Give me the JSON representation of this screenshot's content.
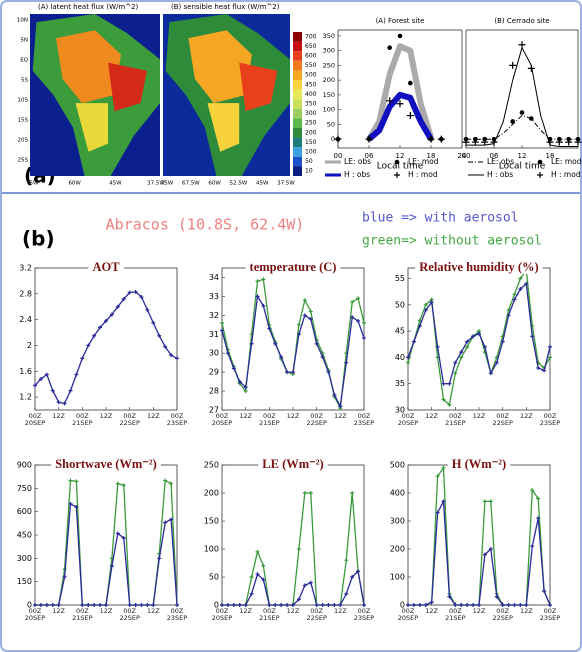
{
  "figure": {
    "panel_a": "(a)",
    "panel_b": "(b)",
    "site": "Abracos (10.8S, 62.4W)",
    "legend_blue": "blue => with aerosol",
    "legend_green": "green=> without aerosol"
  },
  "maps": [
    {
      "title": "(A) latent heat flux (W/m^2)",
      "yticks": [
        "10N",
        "5N",
        "EQ",
        "5S",
        "10S",
        "15S",
        "20S",
        "25S"
      ],
      "xticks": [
        "5W",
        "60W",
        "45W",
        "37.5W"
      ]
    },
    {
      "title": "(B) sensible heat flux (W/m^2)",
      "xticks": [
        "75W",
        "67.5W",
        "60W",
        "52.5W",
        "45W",
        "37.5W"
      ]
    }
  ],
  "colorbar": {
    "ticks": [
      700,
      650,
      600,
      550,
      500,
      450,
      400,
      350,
      300,
      250,
      200,
      150,
      100,
      50,
      10
    ],
    "colors": [
      "#8b0000",
      "#c81010",
      "#e8401a",
      "#f27a1e",
      "#f5a623",
      "#f7d23a",
      "#e8e85a",
      "#c8e05a",
      "#9cd060",
      "#5cb84a",
      "#2e8b3a",
      "#1f7a7a",
      "#3aa0e0",
      "#1a50c8",
      "#0a1f80"
    ]
  },
  "chart_data": [
    {
      "type": "line",
      "title": "(A) Forest site",
      "xlabel": "Local time",
      "x": [
        0,
        2,
        4,
        6,
        8,
        10,
        12,
        14,
        16,
        18,
        20,
        22,
        24
      ],
      "xlim": [
        0,
        24
      ],
      "xticks": [
        {
          "value": 0,
          "label": "00"
        },
        {
          "value": 6,
          "label": "06"
        },
        12,
        18,
        24
      ],
      "ylim": [
        -30,
        370
      ],
      "yticks": [
        0,
        50,
        100,
        150,
        200,
        250,
        300,
        350
      ],
      "series": [
        {
          "name": "LE: obs",
          "color": "#aaaaaa",
          "style": "thick",
          "values": [
            null,
            null,
            null,
            0,
            60,
            220,
            315,
            300,
            120,
            5,
            null,
            null,
            null
          ]
        },
        {
          "name": "H : obs",
          "color": "#1010c0",
          "style": "thick",
          "values": [
            null,
            null,
            null,
            0,
            30,
            110,
            150,
            140,
            60,
            0,
            null,
            null,
            null
          ]
        },
        {
          "name": "LE: mod",
          "color": "#000000",
          "style": "dots",
          "values": [
            0,
            null,
            null,
            0,
            null,
            310,
            350,
            190,
            null,
            0,
            0,
            null,
            null
          ]
        },
        {
          "name": "H : mod",
          "color": "#000000",
          "style": "plus",
          "values": [
            0,
            null,
            null,
            0,
            null,
            130,
            120,
            80,
            null,
            0,
            0,
            null,
            null
          ]
        }
      ]
    },
    {
      "type": "line",
      "title": "(B) Cerrado site",
      "xlabel": "Local time",
      "x": [
        0,
        2,
        4,
        6,
        8,
        10,
        12,
        14,
        16,
        18,
        20,
        22,
        24
      ],
      "xlim": [
        0,
        24
      ],
      "xticks": [
        {
          "value": 0,
          "label": "00"
        },
        {
          "value": 6,
          "label": "06"
        },
        12,
        18
      ],
      "ylim": [
        -30,
        370
      ],
      "series": [
        {
          "name": "LE: obs",
          "color": "#000000",
          "style": "dashdot",
          "values": [
            0,
            0,
            0,
            0,
            20,
            50,
            80,
            70,
            30,
            0,
            0,
            0,
            0
          ]
        },
        {
          "name": "H : obs",
          "color": "#000000",
          "style": "line",
          "values": [
            -20,
            -20,
            -20,
            -15,
            60,
            200,
            310,
            250,
            80,
            -20,
            -25,
            -25,
            -25
          ]
        },
        {
          "name": "LE: mod",
          "color": "#000000",
          "style": "dots",
          "values": [
            0,
            0,
            0,
            0,
            null,
            60,
            90,
            70,
            null,
            0,
            0,
            0,
            0
          ]
        },
        {
          "name": "H : mod",
          "color": "#000000",
          "style": "plus",
          "values": [
            -10,
            -10,
            -10,
            -10,
            null,
            250,
            320,
            240,
            null,
            -10,
            -10,
            -10,
            -10
          ]
        }
      ]
    },
    {
      "type": "line",
      "title": "AOT",
      "categories": [
        "00Z 20SEP",
        null,
        null,
        null,
        "12Z",
        null,
        null,
        null,
        "00Z 21SEP",
        null,
        null,
        null,
        "12Z",
        null,
        null,
        null,
        "00Z 22SEP",
        null,
        null,
        null,
        "12Z",
        null,
        null,
        null,
        "00Z 23SEP"
      ],
      "ylim": [
        1,
        3.2
      ],
      "yticks": [
        1.2,
        1.6,
        2,
        2.4,
        2.8,
        3.2
      ],
      "series": [
        {
          "color": "#2b2b9b",
          "style": "plus",
          "values": [
            1.38,
            1.48,
            1.55,
            1.3,
            1.12,
            1.1,
            1.3,
            1.55,
            1.8,
            2.0,
            2.15,
            2.28,
            2.38,
            2.48,
            2.6,
            2.72,
            2.82,
            2.83,
            2.75,
            2.55,
            2.35,
            2.15,
            1.98,
            1.85,
            1.8
          ]
        }
      ]
    },
    {
      "type": "line",
      "title": "temperature (C)",
      "categories": [
        "00Z 20SEP",
        null,
        null,
        null,
        "12Z",
        null,
        null,
        null,
        "00Z 21SEP",
        null,
        null,
        null,
        "12Z",
        null,
        null,
        null,
        "00Z 22SEP",
        null,
        null,
        null,
        "12Z",
        null,
        null,
        null,
        "00Z 23SEP"
      ],
      "ylim": [
        27,
        34.5
      ],
      "yticks": [
        27,
        28,
        29,
        30,
        31,
        32,
        33,
        34
      ],
      "series": [
        {
          "color": "#3a9a3a",
          "style": "plus",
          "values": [
            31.6,
            30.2,
            29.3,
            28.4,
            28.0,
            31,
            33.8,
            33.9,
            31.5,
            30.6,
            29.7,
            29.0,
            28.9,
            31.5,
            32.8,
            32.2,
            30.7,
            30,
            29.1,
            27.7,
            27.1,
            30,
            32.7,
            32.9,
            31.6
          ]
        },
        {
          "color": "#2b2b9b",
          "style": "plus",
          "values": [
            31.2,
            30,
            29.2,
            28.5,
            28.2,
            30.5,
            33.0,
            32.5,
            31.3,
            30.5,
            29.8,
            29,
            29.0,
            31,
            32,
            31.8,
            30.5,
            29.8,
            29.0,
            27.8,
            27.2,
            29.5,
            31.9,
            31.7,
            30.8
          ]
        }
      ]
    },
    {
      "type": "line",
      "title": "Relative humidity (%)",
      "categories": [
        "00Z 20SEP",
        null,
        null,
        null,
        "12Z",
        null,
        null,
        null,
        "00Z 21SEP",
        null,
        null,
        null,
        "12Z",
        null,
        null,
        null,
        "00Z 22SEP",
        null,
        null,
        null,
        "12Z",
        null,
        null,
        null,
        "00Z 23SEP"
      ],
      "ylim": [
        30,
        57
      ],
      "yticks": [
        30,
        35,
        40,
        45,
        50,
        55
      ],
      "series": [
        {
          "color": "#3a9a3a",
          "style": "plus",
          "values": [
            39,
            43,
            47,
            50,
            51,
            40,
            32,
            31,
            37,
            40,
            42,
            44,
            45,
            41,
            37,
            40,
            44,
            49,
            52,
            55,
            56.5,
            46,
            39,
            38,
            40
          ]
        },
        {
          "color": "#2b2b9b",
          "style": "plus",
          "values": [
            40,
            43,
            46,
            49,
            50.5,
            42,
            35,
            35,
            39,
            41,
            43,
            44,
            44.5,
            42,
            37,
            39,
            43,
            48,
            51,
            53,
            54,
            44,
            38,
            37.5,
            42
          ]
        }
      ]
    },
    {
      "type": "line",
      "title": "Shortwave (Wm⁻²)",
      "categories": [
        "00Z 20SEP",
        null,
        null,
        null,
        "12Z",
        null,
        null,
        null,
        "00Z 21SEP",
        null,
        null,
        null,
        "12Z",
        null,
        null,
        null,
        "00Z 22SEP",
        null,
        null,
        null,
        "12Z",
        null,
        null,
        null,
        "00Z 23SEP"
      ],
      "ylim": [
        0,
        900
      ],
      "yticks": [
        0,
        150,
        300,
        450,
        600,
        750,
        900
      ],
      "series": [
        {
          "color": "#3a9a3a",
          "style": "plus",
          "values": [
            0,
            0,
            0,
            0,
            0,
            230,
            800,
            795,
            0,
            0,
            0,
            0,
            0,
            300,
            780,
            770,
            0,
            0,
            0,
            0,
            0,
            330,
            800,
            780,
            0
          ]
        },
        {
          "color": "#2b2b9b",
          "style": "plus",
          "values": [
            0,
            0,
            0,
            0,
            0,
            180,
            650,
            630,
            0,
            0,
            0,
            0,
            0,
            250,
            460,
            430,
            0,
            0,
            0,
            0,
            0,
            300,
            530,
            550,
            0
          ]
        }
      ]
    },
    {
      "type": "line",
      "title": "LE (Wm⁻²)",
      "categories": [
        "00Z 20SEP",
        null,
        null,
        null,
        "12Z",
        null,
        null,
        null,
        "00Z 21SEP",
        null,
        null,
        null,
        "12Z",
        null,
        null,
        null,
        "00Z 22SEP",
        null,
        null,
        null,
        "12Z",
        null,
        null,
        null,
        "00Z 23SEP"
      ],
      "ylim": [
        0,
        250
      ],
      "yticks": [
        0,
        50,
        100,
        150,
        200,
        250
      ],
      "series": [
        {
          "color": "#3a9a3a",
          "style": "plus",
          "values": [
            0,
            0,
            0,
            0,
            0,
            50,
            95,
            70,
            0,
            0,
            0,
            0,
            0,
            100,
            200,
            200,
            0,
            0,
            0,
            0,
            0,
            80,
            200,
            60,
            0
          ]
        },
        {
          "color": "#2b2b9b",
          "style": "plus",
          "values": [
            0,
            0,
            0,
            0,
            0,
            20,
            55,
            45,
            0,
            0,
            0,
            0,
            0,
            10,
            35,
            40,
            0,
            0,
            0,
            0,
            0,
            20,
            50,
            60,
            0
          ]
        }
      ]
    },
    {
      "type": "line",
      "title": "H (Wm⁻²)",
      "categories": [
        "00Z 20SEP",
        null,
        null,
        null,
        "12Z",
        null,
        null,
        null,
        "00Z 21SEP",
        null,
        null,
        null,
        "12Z",
        null,
        null,
        null,
        "00Z 22SEP",
        null,
        null,
        null,
        "12Z",
        null,
        null,
        null,
        "00Z 23SEP"
      ],
      "ylim": [
        0,
        500
      ],
      "yticks": [
        0,
        100,
        200,
        300,
        400,
        500
      ],
      "series": [
        {
          "color": "#3a9a3a",
          "style": "plus",
          "values": [
            0,
            0,
            0,
            0,
            10,
            460,
            490,
            40,
            0,
            0,
            0,
            0,
            0,
            370,
            370,
            40,
            0,
            0,
            0,
            0,
            0,
            410,
            380,
            50,
            0
          ]
        },
        {
          "color": "#2b2b9b",
          "style": "plus",
          "values": [
            0,
            0,
            0,
            0,
            10,
            330,
            370,
            30,
            0,
            0,
            0,
            0,
            0,
            180,
            200,
            30,
            0,
            0,
            0,
            0,
            0,
            210,
            310,
            50,
            0
          ]
        }
      ]
    }
  ]
}
